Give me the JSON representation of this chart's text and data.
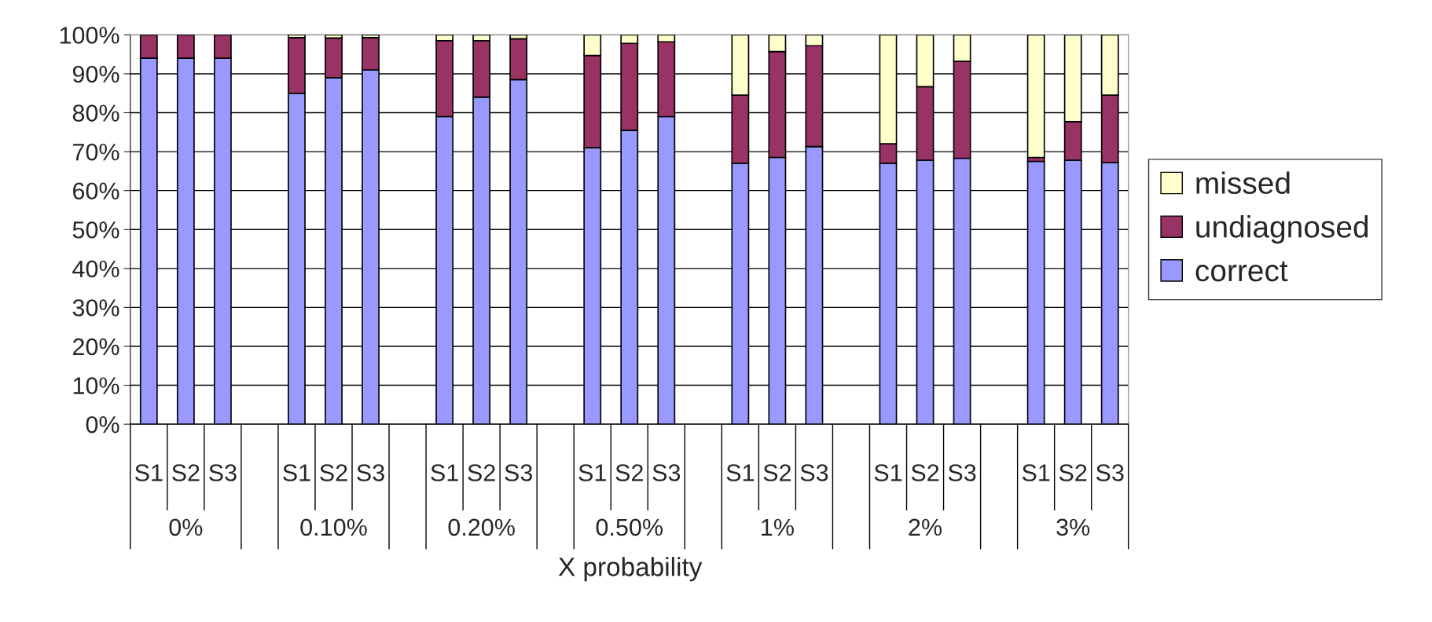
{
  "chart_data": {
    "type": "bar",
    "stacked": true,
    "xlabel": "X probability",
    "categories": [
      "S1",
      "S2",
      "S3",
      null,
      "S1",
      "S2",
      "S3",
      null,
      "S1",
      "S2",
      "S3",
      null,
      "S1",
      "S2",
      "S3",
      null,
      "S1",
      "S2",
      "S3",
      null,
      "S1",
      "S2",
      "S3",
      null,
      "S1",
      "S2",
      "S3"
    ],
    "series": [
      {
        "name": "correct",
        "color": "#9999ff",
        "values": [
          94,
          94,
          94,
          null,
          85,
          89,
          91,
          null,
          79,
          84,
          88.5,
          null,
          71,
          75.5,
          79,
          null,
          67,
          68.5,
          71.3,
          null,
          67,
          67.8,
          68.3,
          null,
          67.5,
          67.8,
          67.2
        ]
      },
      {
        "name": "undiagnosed",
        "color": "#993366",
        "values": [
          6,
          6,
          6,
          null,
          14.3,
          10.2,
          8.3,
          null,
          19.5,
          14.5,
          10.5,
          null,
          23.7,
          22.3,
          19.2,
          null,
          17.5,
          27.2,
          25.9,
          null,
          5,
          18.9,
          24.9,
          null,
          1,
          9.9,
          17.3
        ]
      },
      {
        "name": "missed",
        "color": "#ffffcc",
        "values": [
          null,
          null,
          null,
          null,
          0.7,
          0.8,
          0.7,
          null,
          1.5,
          1.5,
          1,
          null,
          5.3,
          2.2,
          1.8,
          null,
          15.5,
          4.3,
          2.8,
          null,
          28,
          13.3,
          6.8,
          null,
          31.5,
          22.3,
          15.5
        ]
      }
    ],
    "annotations": [
      "0%",
      "0.10%",
      "0.20%",
      "0.50%",
      "1%",
      "2%",
      "3%"
    ],
    "ylim": [
      0,
      100
    ],
    "yticks": [
      {
        "value": 0,
        "label": "0%"
      },
      {
        "value": 10,
        "label": "10%"
      },
      {
        "value": 20,
        "label": "20%"
      },
      {
        "value": 30,
        "label": "30%"
      },
      {
        "value": 40,
        "label": "40%"
      },
      {
        "value": 50,
        "label": "50%"
      },
      {
        "value": 60,
        "label": "60%"
      },
      {
        "value": 70,
        "label": "70%"
      },
      {
        "value": 80,
        "label": "80%"
      },
      {
        "value": 90,
        "label": "90%"
      },
      {
        "value": 100,
        "label": "100%"
      }
    ],
    "grid": "y",
    "legend": "right"
  }
}
